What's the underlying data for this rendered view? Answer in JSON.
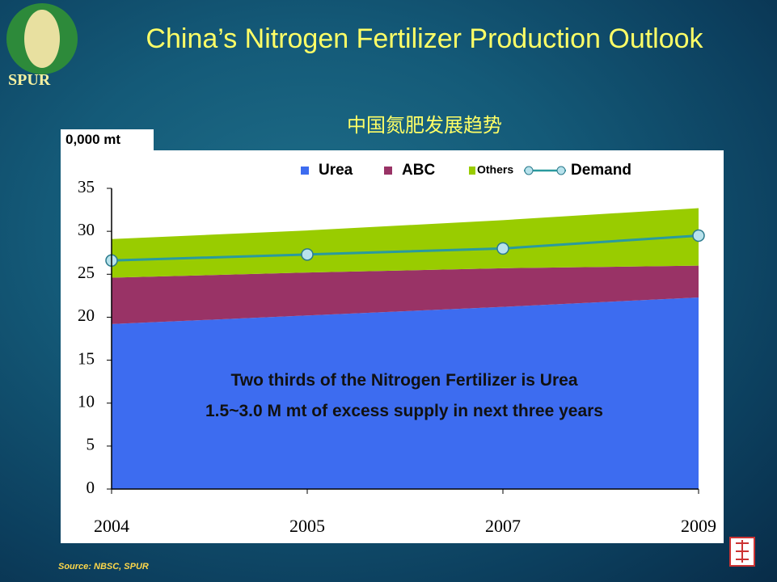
{
  "logo_text": "SPUR",
  "source": "Source: NBSC, SPUR",
  "chart_data": {
    "type": "stacked_area",
    "title": "China’s Nitrogen Fertilizer Production Outlook",
    "subtitle": "中国氮肥发展趋势",
    "y_label": "0,000 mt",
    "annotations": [
      "Two thirds of the Nitrogen Fertilizer is Urea",
      "1.5~3.0 M mt of  excess supply in next three years"
    ],
    "categories": [
      "2004",
      "2005",
      "2007",
      "2009"
    ],
    "series": [
      {
        "name": "Urea",
        "color": "#3d6cf0",
        "values": [
          19.2,
          20.2,
          21.2,
          22.3
        ]
      },
      {
        "name": "ABC",
        "color": "#993366",
        "values": [
          5.4,
          5.0,
          4.5,
          3.7
        ]
      },
      {
        "name": "Others",
        "color": "#99cc00",
        "values": [
          4.5,
          4.9,
          5.6,
          6.7
        ]
      },
      {
        "name": "Demand",
        "type": "line",
        "color": "#2a9a9e",
        "values": [
          26.6,
          27.3,
          28.0,
          29.5
        ]
      }
    ],
    "ylim": [
      0,
      35
    ],
    "yticks": [
      0,
      5,
      10,
      15,
      20,
      25,
      30,
      35
    ]
  }
}
